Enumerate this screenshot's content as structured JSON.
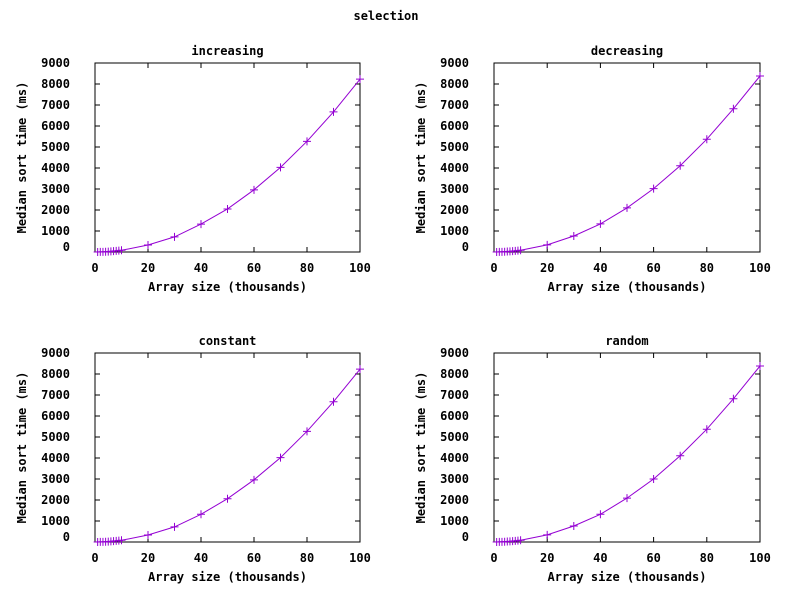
{
  "figure_title": "selection",
  "colors": {
    "series": "#9400d3",
    "axis": "#000000"
  },
  "chart_data": [
    {
      "type": "line",
      "title": "increasing",
      "xlabel": "Array size (thousands)",
      "ylabel": "Median sort time (ms)",
      "xlim": [
        0,
        100
      ],
      "ylim": [
        0,
        9000
      ],
      "xticks": [
        0,
        20,
        40,
        60,
        80,
        100
      ],
      "yticks": [
        0,
        1000,
        2000,
        3000,
        4000,
        5000,
        6000,
        7000,
        8000,
        9000
      ],
      "grid": false,
      "marker": "plus",
      "series": [
        {
          "x": [
            1,
            2,
            3,
            4,
            5,
            6,
            7,
            8,
            9,
            10,
            20,
            30,
            40,
            50,
            60,
            70,
            80,
            90,
            100
          ],
          "values": [
            1,
            3,
            7,
            13,
            20,
            29,
            40,
            53,
            67,
            83,
            333,
            720,
            1330,
            2050,
            2960,
            4030,
            5270,
            6670,
            8230
          ]
        }
      ]
    },
    {
      "type": "line",
      "title": "decreasing",
      "xlabel": "Array size (thousands)",
      "ylabel": "Median sort time (ms)",
      "xlim": [
        0,
        100
      ],
      "ylim": [
        0,
        9000
      ],
      "xticks": [
        0,
        20,
        40,
        60,
        80,
        100
      ],
      "yticks": [
        0,
        1000,
        2000,
        3000,
        4000,
        5000,
        6000,
        7000,
        8000,
        9000
      ],
      "grid": false,
      "marker": "plus",
      "series": [
        {
          "x": [
            1,
            2,
            3,
            4,
            5,
            6,
            7,
            8,
            9,
            10,
            20,
            30,
            40,
            50,
            60,
            70,
            80,
            90,
            100
          ],
          "values": [
            1,
            3,
            8,
            14,
            21,
            30,
            41,
            54,
            68,
            84,
            340,
            760,
            1340,
            2100,
            3020,
            4110,
            5370,
            6820,
            8380
          ]
        }
      ]
    },
    {
      "type": "line",
      "title": "constant",
      "xlabel": "Array size (thousands)",
      "ylabel": "Median sort time (ms)",
      "xlim": [
        0,
        100
      ],
      "ylim": [
        0,
        9000
      ],
      "xticks": [
        0,
        20,
        40,
        60,
        80,
        100
      ],
      "yticks": [
        0,
        1000,
        2000,
        3000,
        4000,
        5000,
        6000,
        7000,
        8000,
        9000
      ],
      "grid": false,
      "marker": "plus",
      "series": [
        {
          "x": [
            1,
            2,
            3,
            4,
            5,
            6,
            7,
            8,
            9,
            10,
            20,
            30,
            40,
            50,
            60,
            70,
            80,
            90,
            100
          ],
          "values": [
            1,
            3,
            7,
            13,
            20,
            29,
            40,
            53,
            67,
            83,
            333,
            720,
            1320,
            2060,
            2960,
            4020,
            5270,
            6680,
            8230
          ]
        }
      ]
    },
    {
      "type": "line",
      "title": "random",
      "xlabel": "Array size (thousands)",
      "ylabel": "Median sort time (ms)",
      "xlim": [
        0,
        100
      ],
      "ylim": [
        0,
        9000
      ],
      "xticks": [
        0,
        20,
        40,
        60,
        80,
        100
      ],
      "yticks": [
        0,
        1000,
        2000,
        3000,
        4000,
        5000,
        6000,
        7000,
        8000,
        9000
      ],
      "grid": false,
      "marker": "plus",
      "series": [
        {
          "x": [
            1,
            2,
            3,
            4,
            5,
            6,
            7,
            8,
            9,
            10,
            20,
            30,
            40,
            50,
            60,
            70,
            80,
            90,
            100
          ],
          "values": [
            1,
            3,
            8,
            14,
            21,
            30,
            41,
            54,
            68,
            84,
            340,
            760,
            1320,
            2090,
            3000,
            4110,
            5370,
            6820,
            8380
          ]
        }
      ]
    }
  ]
}
